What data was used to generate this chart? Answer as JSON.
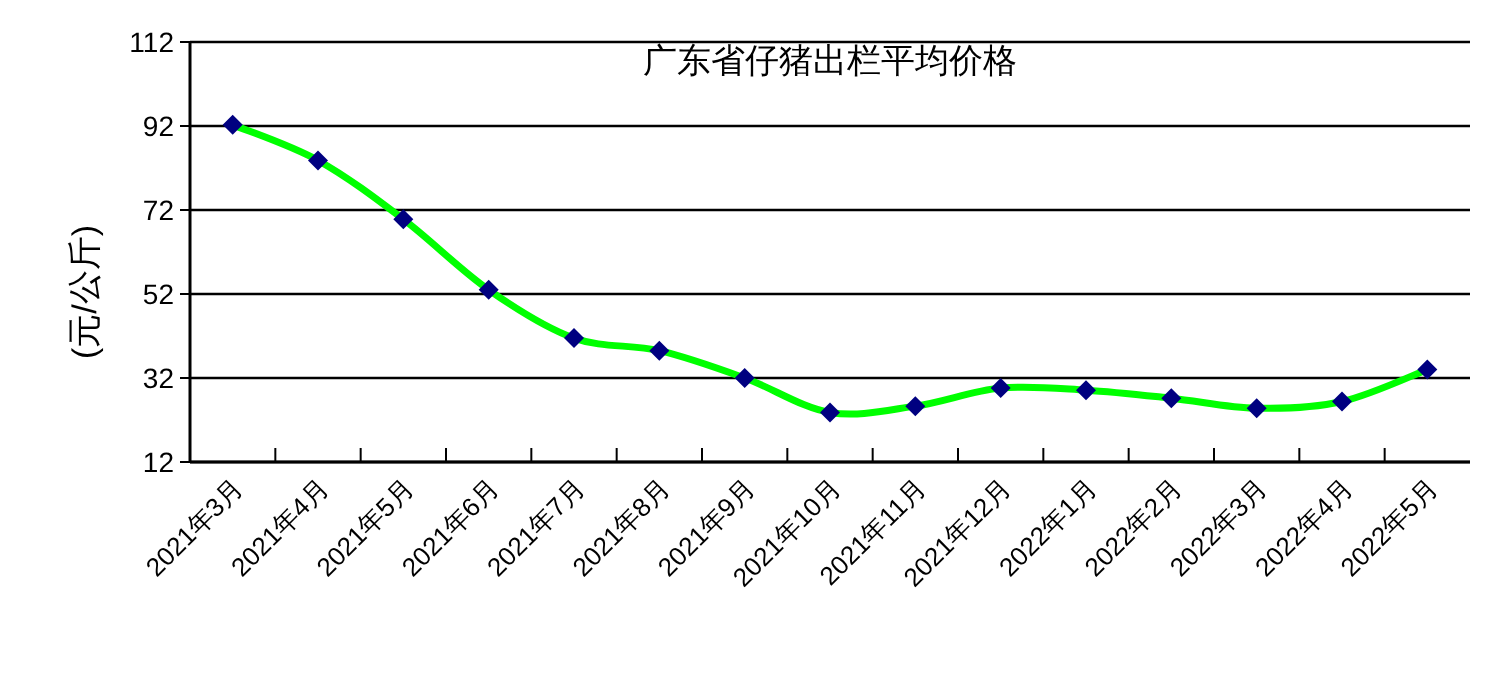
{
  "chart_data": {
    "type": "line",
    "title": "广东省仔猪出栏平均价格",
    "ylabel": "(元/公斤)",
    "categories": [
      "2021年3月",
      "2021年4月",
      "2021年5月",
      "2021年6月",
      "2021年7月",
      "2021年8月",
      "2021年9月",
      "2021年10月",
      "2021年11月",
      "2021年12月",
      "2022年1月",
      "2022年2月",
      "2022年3月",
      "2022年4月",
      "2022年5月"
    ],
    "series": [
      {
        "color": "#00ff00",
        "values": [
          92.3,
          83.8,
          69.8,
          53,
          41.5,
          38.5,
          32,
          23.8,
          25.3,
          29.6,
          29.1,
          27.2,
          24.8,
          26.4,
          34
        ]
      }
    ],
    "ylim": [
      12,
      112
    ],
    "yticks": [
      12,
      32,
      52,
      72,
      92,
      112
    ],
    "grid": "y",
    "marker": "diamond",
    "line_style": "solid"
  }
}
